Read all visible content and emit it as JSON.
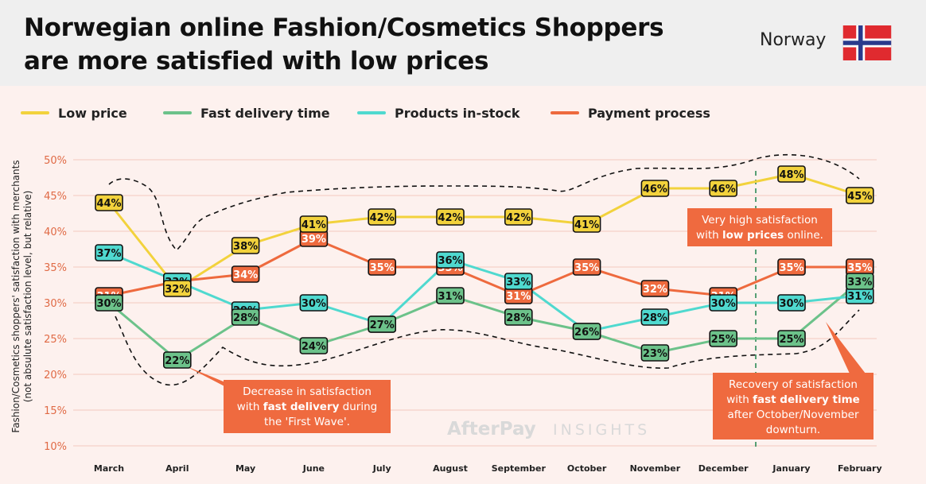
{
  "header": {
    "title_line1": "Norwegian online Fashion/Cosmetics Shoppers",
    "title_line2": "are more satisfied with low prices",
    "country": "Norway"
  },
  "watermark": {
    "brand": "AfterPay",
    "suffix": "INSIGHTS"
  },
  "colors": {
    "low_price": "#f2d23c",
    "fast_delivery": "#6cc28a",
    "in_stock": "#4fd9cf",
    "payment": "#ee6a3e",
    "callout": "#ef6a3f",
    "marker_line": "#2e8b57"
  },
  "annotations": [
    {
      "id": "callout-low-prices",
      "line1": "Very high satisfaction",
      "line2_pre": "with ",
      "line2_bold": "low prices",
      "line2_post": " online."
    },
    {
      "id": "callout-first-wave",
      "line1": "Decrease in satisfaction",
      "line2_pre": "with ",
      "line2_bold": "fast delivery",
      "line2_post": " during",
      "line3": "the 'First Wave'."
    },
    {
      "id": "callout-recovery",
      "line1": "Recovery of satisfaction",
      "line2_pre": "with ",
      "line2_bold": "fast delivery time",
      "line2_post": "",
      "line3": "after October/November",
      "line4": "downturn."
    }
  ],
  "chart_data": {
    "type": "line",
    "categories": [
      "March",
      "April",
      "May",
      "June",
      "July",
      "August",
      "September",
      "October",
      "November",
      "December",
      "January",
      "February"
    ],
    "ylabel_line1": "Fashion/Cosmetics shoppers' satisfaction with merchants",
    "ylabel_line2": "(not absulute satisfaction level, but relative)",
    "ylim": [
      10,
      50
    ],
    "yticks": [
      "10%",
      "15%",
      "20%",
      "25%",
      "30%",
      "35%",
      "40%",
      "45%",
      "50%"
    ],
    "grid": true,
    "legend_position": "top",
    "series": [
      {
        "name": "Low price",
        "color": "#f2d23c",
        "values": [
          44,
          32,
          38,
          41,
          42,
          42,
          42,
          41,
          46,
          46,
          48,
          45
        ]
      },
      {
        "name": "Fast delivery time",
        "color": "#6cc28a",
        "values": [
          30,
          22,
          28,
          24,
          27,
          31,
          28,
          26,
          23,
          25,
          25,
          33
        ]
      },
      {
        "name": "Products in-stock",
        "color": "#4fd9cf",
        "values": [
          37,
          33,
          29,
          30,
          27,
          36,
          33,
          26,
          28,
          30,
          30,
          31
        ]
      },
      {
        "name": "Payment process",
        "color": "#ee6a3e",
        "values": [
          31,
          33,
          34,
          39,
          35,
          35,
          31,
          35,
          32,
          31,
          35,
          35
        ]
      }
    ]
  }
}
